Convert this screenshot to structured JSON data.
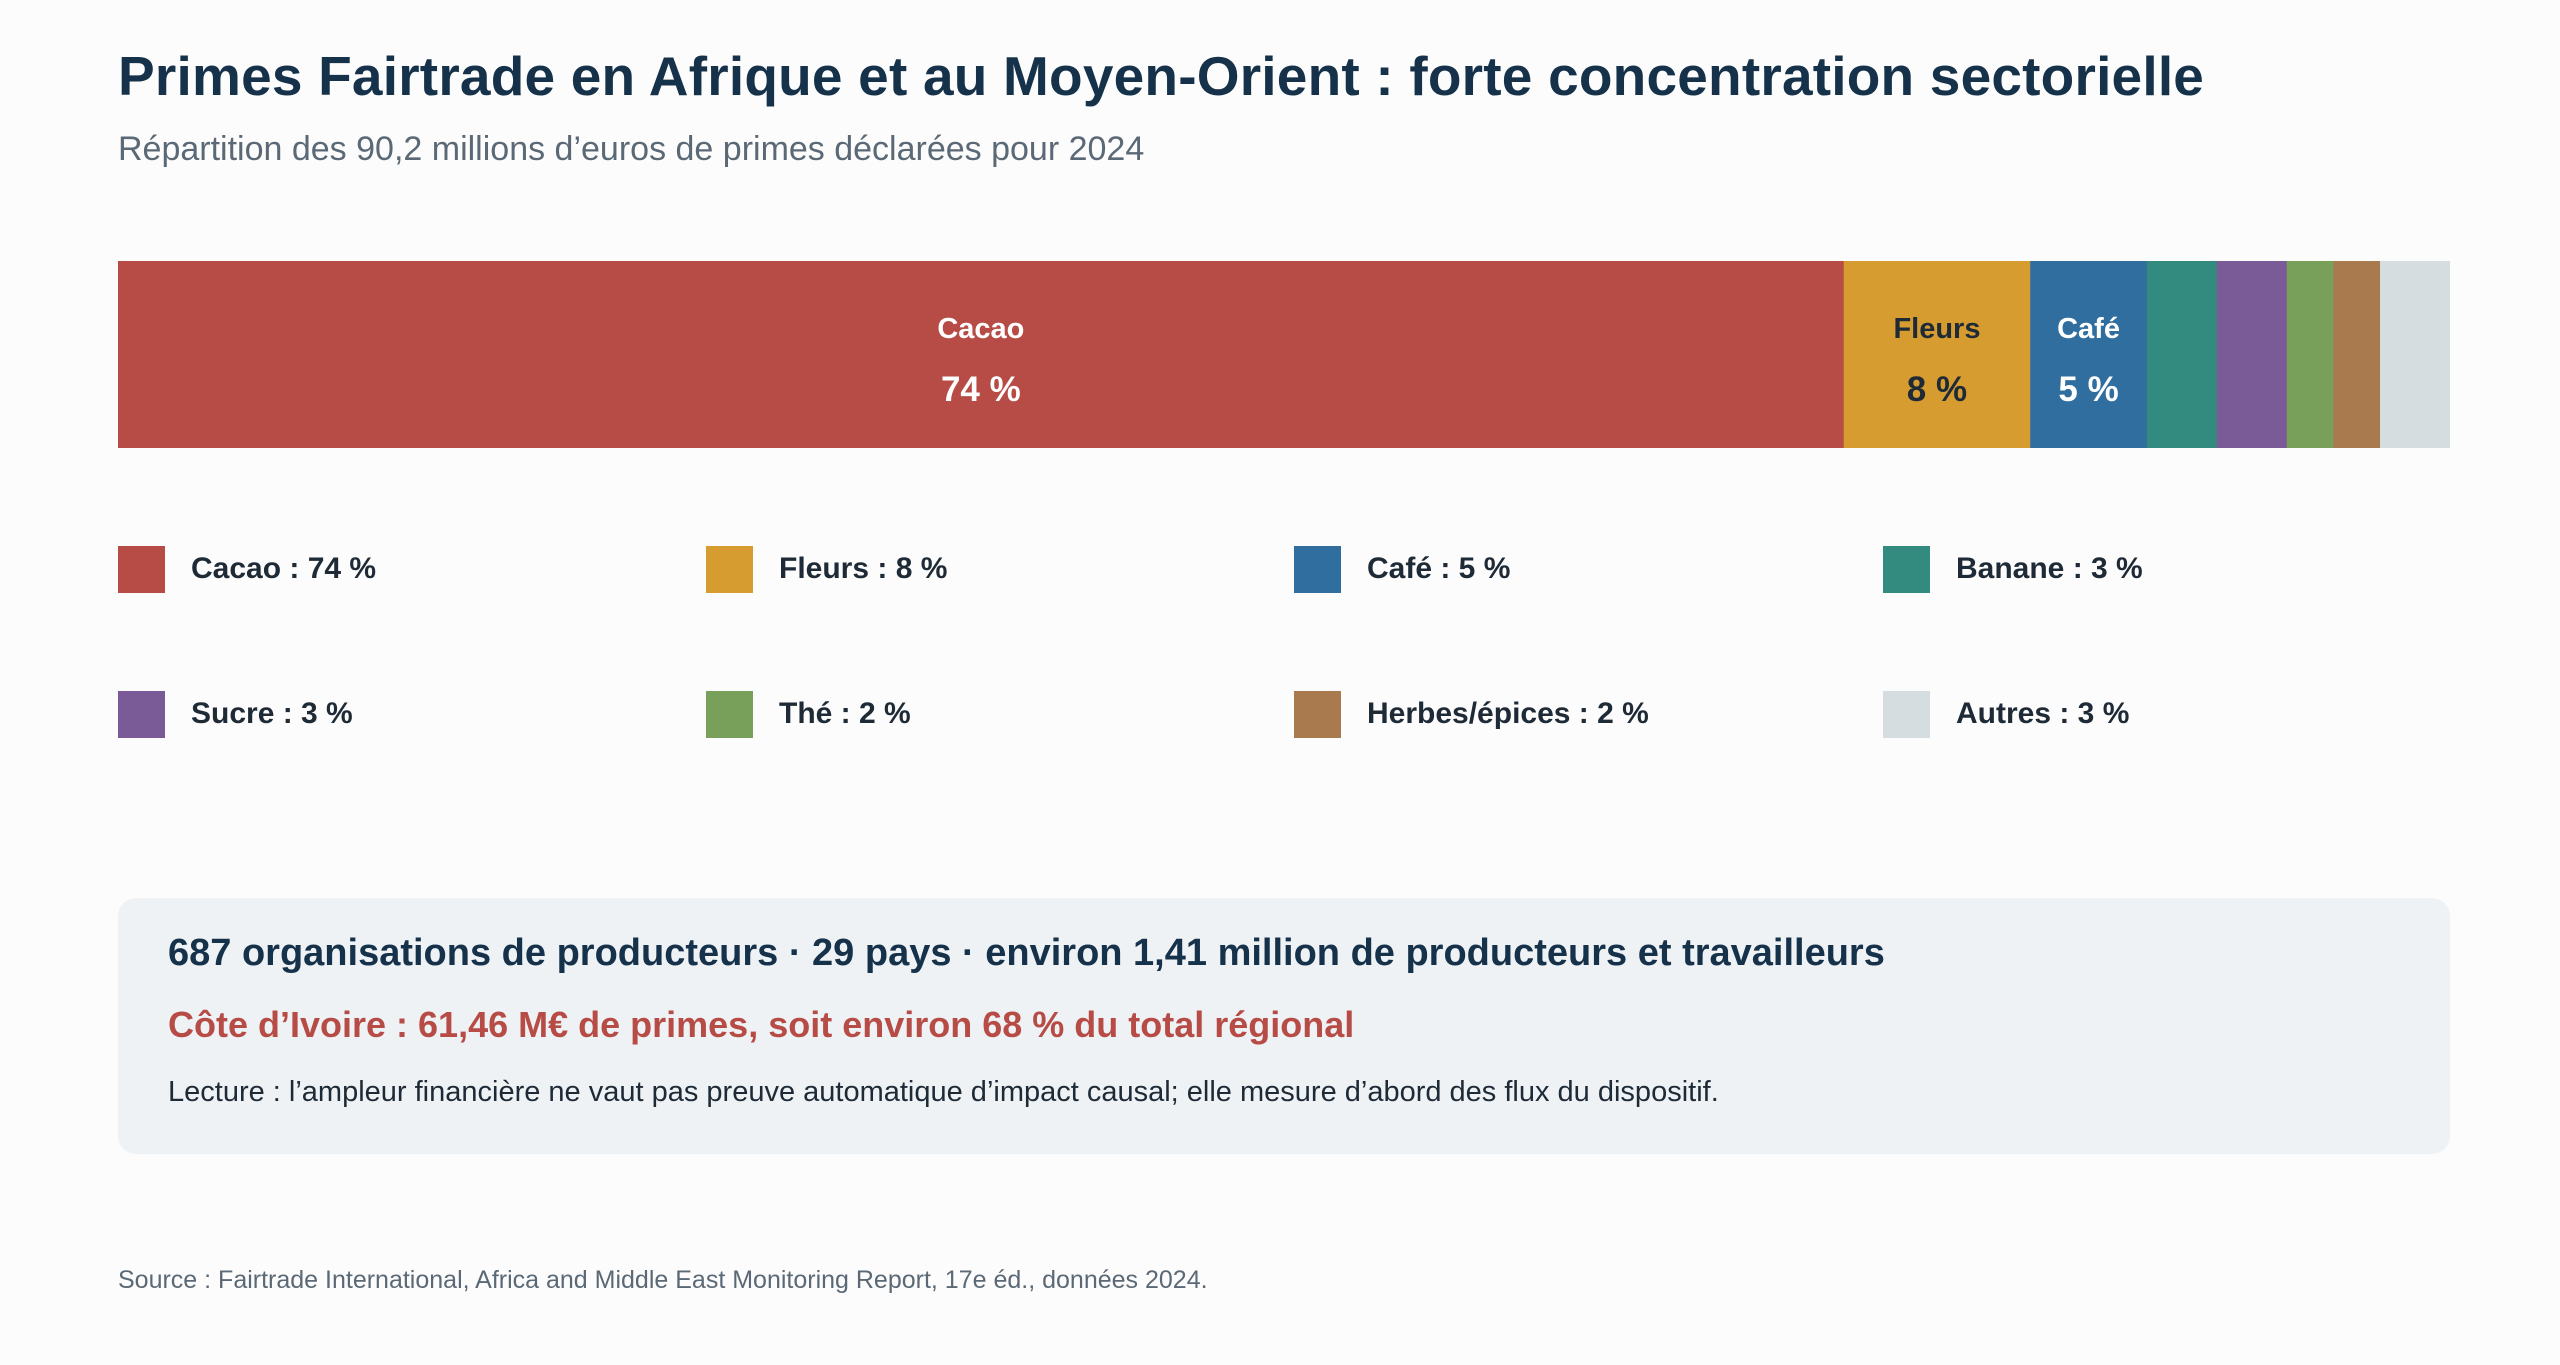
{
  "header": {
    "title": "Primes Fairtrade en Afrique et au Moyen-Orient : forte concentration sectorielle",
    "subtitle": "Répartition des 90,2 millions d’euros de primes déclarées pour 2024"
  },
  "chart_data": {
    "type": "bar",
    "orientation": "horizontal",
    "stacked": true,
    "unit": "%",
    "categories": [
      "Cacao",
      "Fleurs",
      "Café",
      "Banane",
      "Sucre",
      "Thé",
      "Herbes/épices",
      "Autres"
    ],
    "values": [
      74,
      8,
      5,
      3,
      3,
      2,
      2,
      3
    ],
    "colors": [
      "#b64c45",
      "#d69c30",
      "#2f6e9f",
      "#338b80",
      "#7a5b97",
      "#78a05a",
      "#a87a4e",
      "#d6dde1"
    ],
    "segment_labels": [
      {
        "name": "Cacao",
        "value": "74 %",
        "label_color": "#ffffff"
      },
      {
        "name": "Fleurs",
        "value": "8 %",
        "label_color": "#1e2a36"
      },
      {
        "name": "Café",
        "value": "5 %",
        "label_color": "#ffffff"
      }
    ],
    "legend": [
      {
        "label": "Cacao : 74 %",
        "color": "#b64c45"
      },
      {
        "label": "Fleurs : 8 %",
        "color": "#d69c30"
      },
      {
        "label": "Café : 5 %",
        "color": "#2f6e9f"
      },
      {
        "label": "Banane : 3 %",
        "color": "#338b80"
      },
      {
        "label": "Sucre : 3 %",
        "color": "#7a5b97"
      },
      {
        "label": "Thé : 2 %",
        "color": "#78a05a"
      },
      {
        "label": "Herbes/épices : 2 %",
        "color": "#a87a4e"
      },
      {
        "label": "Autres : 3 %",
        "color": "#d6dde1"
      }
    ],
    "legend_placement": "below",
    "grid": false
  },
  "info": {
    "main": "687 organisations de producteurs · 29 pays · environ 1,41 million de producteurs et travailleurs",
    "highlight": "Côte d’Ivoire : 61,46 M€ de primes, soit environ 68 % du total régional",
    "note": "Lecture : l’ampleur financière ne vaut pas preuve automatique d’impact causal; elle mesure d’abord des flux du dispositif."
  },
  "source": "Source : Fairtrade International, Africa and Middle East Monitoring Report, 17e éd., données 2024."
}
